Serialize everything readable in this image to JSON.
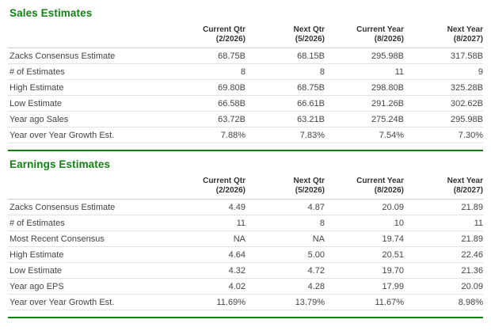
{
  "theme": {
    "accent_green": "#128312",
    "text_dark": "#333333",
    "text_body": "#444444",
    "row_border": "#e3e3e3",
    "header_border": "#d0d0d0",
    "background": "#ffffff"
  },
  "columns": [
    {
      "label": "Current Qtr",
      "sub": "(2/2026)"
    },
    {
      "label": "Next Qtr",
      "sub": "(5/2026)"
    },
    {
      "label": "Current Year",
      "sub": "(8/2026)"
    },
    {
      "label": "Next Year",
      "sub": "(8/2027)"
    }
  ],
  "sections": [
    {
      "id": "sales-estimates",
      "title": "Sales Estimates",
      "rows": [
        {
          "label": "Zacks Consensus Estimate",
          "values": [
            "68.75B",
            "68.15B",
            "295.98B",
            "317.58B"
          ]
        },
        {
          "label": "# of Estimates",
          "values": [
            "8",
            "8",
            "11",
            "9"
          ]
        },
        {
          "label": "High Estimate",
          "values": [
            "69.80B",
            "68.75B",
            "298.80B",
            "325.28B"
          ]
        },
        {
          "label": "Low Estimate",
          "values": [
            "66.58B",
            "66.61B",
            "291.26B",
            "302.62B"
          ]
        },
        {
          "label": "Year ago Sales",
          "values": [
            "63.72B",
            "63.21B",
            "275.24B",
            "295.98B"
          ]
        },
        {
          "label": "Year over Year Growth Est.",
          "values": [
            "7.88%",
            "7.83%",
            "7.54%",
            "7.30%"
          ]
        }
      ]
    },
    {
      "id": "earnings-estimates",
      "title": "Earnings Estimates",
      "rows": [
        {
          "label": "Zacks Consensus Estimate",
          "values": [
            "4.49",
            "4.87",
            "20.09",
            "21.89"
          ]
        },
        {
          "label": "# of Estimates",
          "values": [
            "11",
            "8",
            "10",
            "11"
          ]
        },
        {
          "label": "Most Recent Consensus",
          "values": [
            "NA",
            "NA",
            "19.74",
            "21.89"
          ]
        },
        {
          "label": "High Estimate",
          "values": [
            "4.64",
            "5.00",
            "20.51",
            "22.46"
          ]
        },
        {
          "label": "Low Estimate",
          "values": [
            "4.32",
            "4.72",
            "19.70",
            "21.36"
          ]
        },
        {
          "label": "Year ago EPS",
          "values": [
            "4.02",
            "4.28",
            "17.99",
            "20.09"
          ]
        },
        {
          "label": "Year over Year Growth Est.",
          "values": [
            "11.69%",
            "13.79%",
            "11.67%",
            "8.98%"
          ]
        }
      ]
    }
  ]
}
